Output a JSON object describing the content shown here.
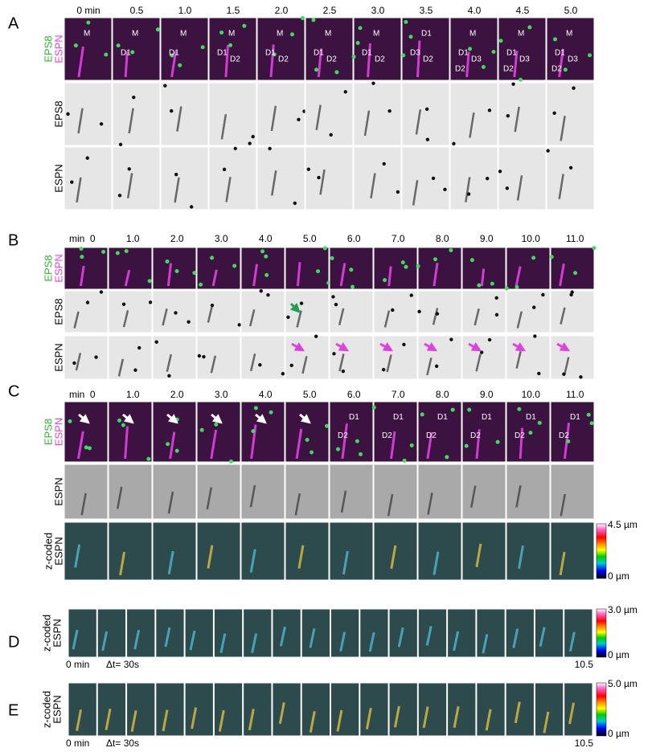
{
  "panels": [
    {
      "label": "A",
      "times": [
        "0 min",
        "0.5",
        "1.0",
        "1.5",
        "2.0",
        "2.5",
        "3.0",
        "3.5",
        "4.0",
        "4.5",
        "5.0"
      ],
      "rows": [
        [
          "EPS8",
          "ESPN"
        ],
        [
          "EPS8"
        ],
        [
          "ESPN"
        ]
      ],
      "annotations": [
        [
          "M"
        ],
        [
          "M",
          "D1"
        ],
        [
          "M",
          "D1"
        ],
        [
          "M",
          "D1",
          "D2"
        ],
        [
          "M",
          "D1",
          "D2"
        ],
        [
          "M",
          "D1",
          "D2"
        ],
        [
          "M",
          "D1",
          "D2"
        ],
        [
          "D1",
          "D3",
          "D2"
        ],
        [
          "M",
          "D1",
          "D3",
          "D2"
        ],
        [
          "M",
          "D1",
          "D3",
          "D2"
        ],
        [
          "M",
          "D1",
          "D3",
          "D2"
        ]
      ]
    },
    {
      "label": "B",
      "unit": "min",
      "times": [
        "0",
        "1.0",
        "2.0",
        "3.0",
        "4.0",
        "5.0",
        "6.0",
        "7.0",
        "8.0",
        "9.0",
        "10.0",
        "11.0"
      ],
      "rows": [
        [
          "EPS8",
          "ESPN"
        ],
        [
          "EPS8"
        ],
        [
          "ESPN"
        ]
      ]
    },
    {
      "label": "C",
      "unit": "min",
      "times": [
        "0",
        "1.0",
        "2.0",
        "3.0",
        "4.0",
        "5.0",
        "6.0",
        "7.0",
        "8.0",
        "9.0",
        "10.0",
        "11.0"
      ],
      "rows": [
        [
          "EPS8",
          "ESPN"
        ],
        [
          "ESPN"
        ],
        [
          "z-coded",
          "ESPN"
        ]
      ],
      "annotations": [
        [],
        [],
        [],
        [],
        [],
        [],
        [
          "D1",
          "D2"
        ],
        [
          "D1",
          "D2"
        ],
        [
          "D1",
          "D2"
        ],
        [
          "D1",
          "D2"
        ],
        [
          "D1",
          "D2"
        ],
        [
          "D1",
          "D2"
        ]
      ],
      "colorbar": [
        "4.5 µm",
        "0 µm"
      ]
    },
    {
      "label": "D",
      "rows": [
        [
          "z-coded",
          "ESPN"
        ]
      ],
      "start": "0 min",
      "interval": "Δt= 30s",
      "end": "10.5",
      "colorbar": [
        "3.0 µm",
        "0 µm"
      ]
    },
    {
      "label": "E",
      "rows": [
        [
          "z-coded",
          "ESPN"
        ]
      ],
      "start": "0 min",
      "interval": "Δt= 30s",
      "end": "10.5",
      "colorbar": [
        "5.0 µm",
        "0 µm"
      ]
    }
  ]
}
